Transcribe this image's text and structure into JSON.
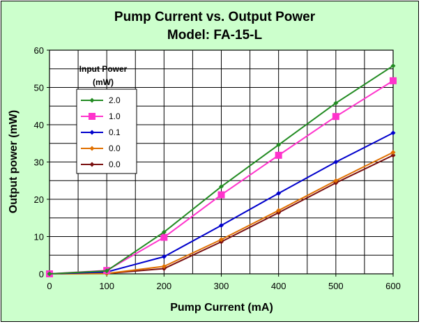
{
  "chart_data": {
    "type": "line",
    "title": "Pump Current vs. Output Power",
    "subtitle": "Model: FA-15-L",
    "xlabel": "Pump Current (mA)",
    "ylabel": "Output power (mW)",
    "xlim": [
      0,
      600
    ],
    "ylim": [
      0,
      60
    ],
    "x_ticks": [
      "0",
      "100",
      "200",
      "300",
      "400",
      "500",
      "600"
    ],
    "y_ticks": [
      "0",
      "10",
      "20",
      "30",
      "40",
      "50",
      "60"
    ],
    "grid": true,
    "background_color": "#ccffcc",
    "plot_background_color": "#ffffff",
    "legend": {
      "title_line1": "Input Power",
      "title_line2": "(mW)",
      "placement": "top-left"
    },
    "x": [
      0,
      100,
      200,
      300,
      400,
      500,
      600
    ],
    "series": [
      {
        "name": "2.0",
        "color": "#228b22",
        "marker": "diamond",
        "values": [
          0,
          0.8,
          11.2,
          23.4,
          34.6,
          45.8,
          55.8
        ]
      },
      {
        "name": "1.0",
        "color": "#ff33cc",
        "marker": "square",
        "values": [
          0,
          0.9,
          9.8,
          21.2,
          31.8,
          42.2,
          51.8
        ]
      },
      {
        "name": "0.1",
        "color": "#0000cc",
        "marker": "diamond",
        "values": [
          0,
          0.5,
          4.6,
          13.0,
          21.6,
          30.0,
          37.8
        ]
      },
      {
        "name": "0.0",
        "color": "#e07000",
        "marker": "diamond",
        "values": [
          0,
          0.1,
          2.0,
          9.2,
          17.0,
          25.0,
          32.6
        ]
      },
      {
        "name": "0.0",
        "color": "#7a1010",
        "marker": "diamond",
        "values": [
          0,
          0.1,
          1.4,
          8.6,
          16.4,
          24.4,
          31.8
        ]
      }
    ]
  }
}
